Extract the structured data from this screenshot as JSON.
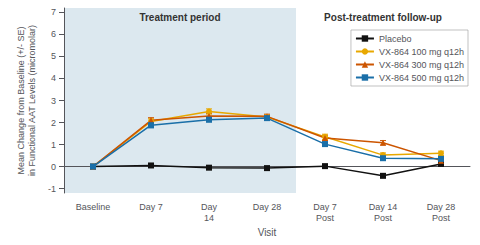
{
  "chart_data": {
    "type": "line",
    "categories": [
      "Baseline",
      "Day 7",
      "Day\n14",
      "Day 28",
      "Day 7\nPost",
      "Day 14\nPost",
      "Day 28\nPost"
    ],
    "series": [
      {
        "name": "Placebo",
        "color": "#111111",
        "marker": "square",
        "values": [
          0.0,
          0.05,
          -0.05,
          -0.07,
          0.02,
          -0.42,
          0.12
        ],
        "errors": [
          0.05,
          0.05,
          0.05,
          0.05,
          0.05,
          0.08,
          0.06
        ]
      },
      {
        "name": "VX-864 100 mg q12h",
        "color": "#e8a800",
        "marker": "circle",
        "values": [
          0.0,
          2.05,
          2.5,
          2.25,
          1.35,
          0.52,
          0.6
        ],
        "errors": [
          0.05,
          0.12,
          0.12,
          0.1,
          0.12,
          0.1,
          0.1
        ]
      },
      {
        "name": "VX-864 300 mg q12h",
        "color": "#cc5500",
        "marker": "triangle",
        "values": [
          0.0,
          2.1,
          2.3,
          2.28,
          1.3,
          1.08,
          0.27
        ],
        "errors": [
          0.05,
          0.12,
          0.12,
          0.1,
          0.12,
          0.1,
          0.08
        ]
      },
      {
        "name": "VX-864 500 mg q12h",
        "color": "#1a6fa8",
        "marker": "square",
        "values": [
          0.0,
          1.88,
          2.13,
          2.2,
          1.02,
          0.38,
          0.35
        ],
        "errors": [
          0.05,
          0.12,
          0.1,
          0.1,
          0.1,
          0.08,
          0.08
        ]
      }
    ],
    "xlabel": "Visit",
    "ylabel": "Mean Change from Baseline (+/- SE)\nin Functional AAT Levels (micromolar)",
    "ylim": [
      -1.2,
      7.2
    ],
    "yticks": [
      -1,
      0,
      1,
      2,
      3,
      4,
      5,
      6,
      7
    ],
    "grid": false,
    "legend": "upper right",
    "annotations": [
      {
        "text": "Treatment period",
        "from": "Baseline",
        "to": "Day 28",
        "color": "#dce8ef"
      },
      {
        "text": "Post-treatment follow-up",
        "from": "Day 7\nPost",
        "to": "Day 28\nPost"
      }
    ]
  }
}
